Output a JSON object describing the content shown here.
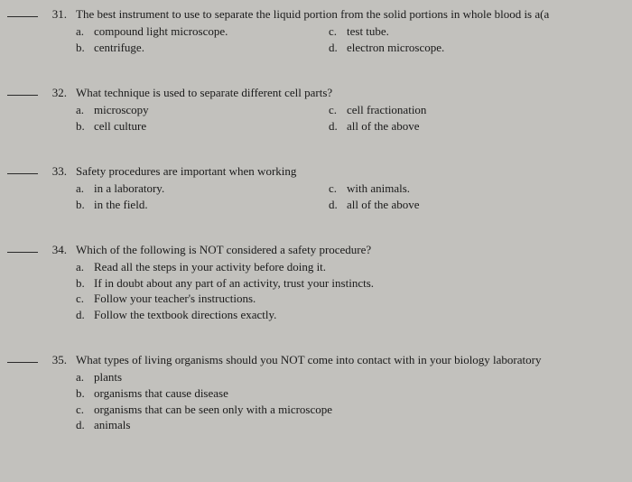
{
  "questions": [
    {
      "num": "31.",
      "stem": "The best instrument to use to separate the liquid portion from the solid portions in whole blood is a(a",
      "layout": "two-col",
      "left": [
        {
          "l": "a.",
          "t": "compound light microscope."
        },
        {
          "l": "b.",
          "t": "centrifuge."
        }
      ],
      "right": [
        {
          "l": "c.",
          "t": "test tube."
        },
        {
          "l": "d.",
          "t": "electron microscope."
        }
      ]
    },
    {
      "num": "32.",
      "stem": "What technique is used to separate different cell parts?",
      "layout": "two-col",
      "left": [
        {
          "l": "a.",
          "t": "microscopy"
        },
        {
          "l": "b.",
          "t": "cell culture"
        }
      ],
      "right": [
        {
          "l": "c.",
          "t": "cell fractionation"
        },
        {
          "l": "d.",
          "t": "all of the above"
        }
      ]
    },
    {
      "num": "33.",
      "stem": "Safety procedures are important when working",
      "layout": "two-col",
      "left": [
        {
          "l": "a.",
          "t": "in a laboratory."
        },
        {
          "l": "b.",
          "t": "in the field."
        }
      ],
      "right": [
        {
          "l": "c.",
          "t": "with animals."
        },
        {
          "l": "d.",
          "t": "all of the above"
        }
      ]
    },
    {
      "num": "34.",
      "stem": "Which of the following is NOT considered a safety procedure?",
      "layout": "single",
      "left": [
        {
          "l": "a.",
          "t": "Read all the steps in your activity before doing it."
        },
        {
          "l": "b.",
          "t": "If in doubt about any part of an activity, trust your instincts."
        },
        {
          "l": "c.",
          "t": "Follow your teacher's instructions."
        },
        {
          "l": "d.",
          "t": "Follow the textbook directions exactly."
        }
      ],
      "right": []
    },
    {
      "num": "35.",
      "stem": "What types of living organisms should you NOT come into contact with in your biology laboratory",
      "layout": "single",
      "left": [
        {
          "l": "a.",
          "t": "plants"
        },
        {
          "l": "b.",
          "t": "organisms that cause disease"
        },
        {
          "l": "c.",
          "t": "organisms that can be seen only with a microscope"
        },
        {
          "l": "d.",
          "t": "animals"
        }
      ],
      "right": []
    }
  ]
}
